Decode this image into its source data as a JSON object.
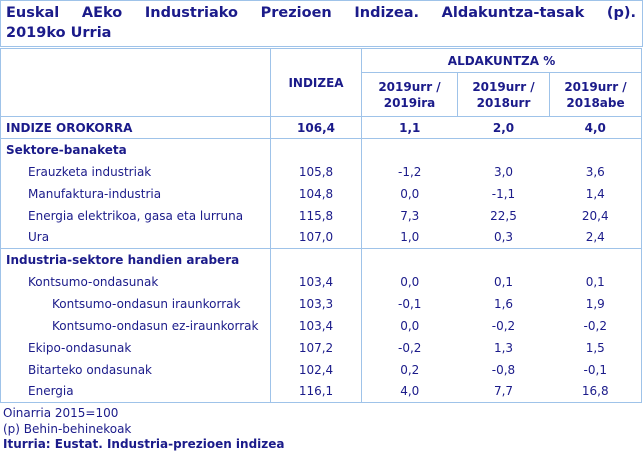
{
  "title": {
    "line1": "Euskal AEko Industriako Prezioen Indizea. Aldakuntza-tasak (p).",
    "line2": "2019ko Urria"
  },
  "table": {
    "header": {
      "indizea": "INDIZEA",
      "aldakuntza": "ALDAKUNTZA %",
      "periods": [
        "2019urr / 2019ira",
        "2019urr / 2018urr",
        "2019urr / 2018abe"
      ]
    },
    "rows": [
      {
        "label": "INDIZE OROKORRA",
        "style": "total",
        "rule_below": true,
        "values": [
          "106,4",
          "1,1",
          "2,0",
          "4,0"
        ]
      },
      {
        "label": "Sektore-banaketa",
        "style": "section",
        "rule_below": false,
        "values": [
          "",
          "",
          "",
          ""
        ]
      },
      {
        "label": "Erauzketa industriak",
        "style": "indent1",
        "rule_below": false,
        "values": [
          "105,8",
          "-1,2",
          "3,0",
          "3,6"
        ]
      },
      {
        "label": "Manufaktura-industria",
        "style": "indent1",
        "rule_below": false,
        "values": [
          "104,8",
          "0,0",
          "-1,1",
          "1,4"
        ]
      },
      {
        "label": "Energia elektrikoa, gasa eta lurruna",
        "style": "indent1",
        "rule_below": false,
        "values": [
          "115,8",
          "7,3",
          "22,5",
          "20,4"
        ]
      },
      {
        "label": "Ura",
        "style": "indent1",
        "rule_below": true,
        "values": [
          "107,0",
          "1,0",
          "0,3",
          "2,4"
        ]
      },
      {
        "label": "Industria-sektore handien arabera",
        "style": "section",
        "rule_below": false,
        "values": [
          "",
          "",
          "",
          ""
        ]
      },
      {
        "label": "Kontsumo-ondasunak",
        "style": "indent1",
        "rule_below": false,
        "values": [
          "103,4",
          "0,0",
          "0,1",
          "0,1"
        ]
      },
      {
        "label": "Kontsumo-ondasun iraunkorrak",
        "style": "indent2",
        "rule_below": false,
        "values": [
          "103,3",
          "-0,1",
          "1,6",
          "1,9"
        ]
      },
      {
        "label": "Kontsumo-ondasun ez-iraunkorrak",
        "style": "indent2",
        "rule_below": false,
        "values": [
          "103,4",
          "0,0",
          "-0,2",
          "-0,2"
        ]
      },
      {
        "label": "Ekipo-ondasunak",
        "style": "indent1",
        "rule_below": false,
        "values": [
          "107,2",
          "-0,2",
          "1,3",
          "1,5"
        ]
      },
      {
        "label": "Bitarteko ondasunak",
        "style": "indent1",
        "rule_below": false,
        "values": [
          "102,4",
          "0,2",
          "-0,8",
          "-0,1"
        ]
      },
      {
        "label": "Energia",
        "style": "indent1",
        "rule_below": false,
        "values": [
          "116,1",
          "4,0",
          "7,7",
          "16,8"
        ]
      }
    ]
  },
  "footer": {
    "lines": [
      "Oinarria 2015=100",
      "(p) Behin-behinekoak"
    ],
    "source": "Iturria: Eustat. Industria-prezioen indizea"
  },
  "colors": {
    "text_navy": "#1b1b8a",
    "border_blue": "#9fc3e9"
  }
}
